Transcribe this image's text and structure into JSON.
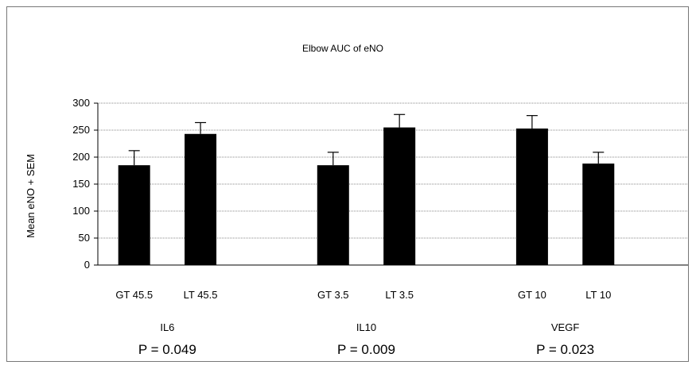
{
  "chart_data": {
    "type": "bar",
    "title": "Elbow AUC of  eNO",
    "ylabel": "Mean eNO + SEM",
    "xlabel": "",
    "ylim": [
      0,
      300
    ],
    "yticks": [
      0,
      50,
      100,
      150,
      200,
      250,
      300
    ],
    "grid": true,
    "bar_color": "#000000",
    "grid_color": "#888888",
    "groups": [
      {
        "name": "IL6",
        "p_value": "P = 0.049",
        "categories": [
          "GT 45.5",
          "LT 45.5"
        ],
        "values": [
          185,
          243
        ],
        "errors": [
          27,
          21
        ]
      },
      {
        "name": "IL10",
        "p_value": "P = 0.009",
        "categories": [
          "GT 3.5",
          "LT 3.5"
        ],
        "values": [
          185,
          255
        ],
        "errors": [
          24,
          24
        ]
      },
      {
        "name": "VEGF",
        "p_value": "P = 0.023",
        "categories": [
          "GT 10",
          "LT 10"
        ],
        "values": [
          253,
          188
        ],
        "errors": [
          24,
          21
        ]
      }
    ]
  }
}
